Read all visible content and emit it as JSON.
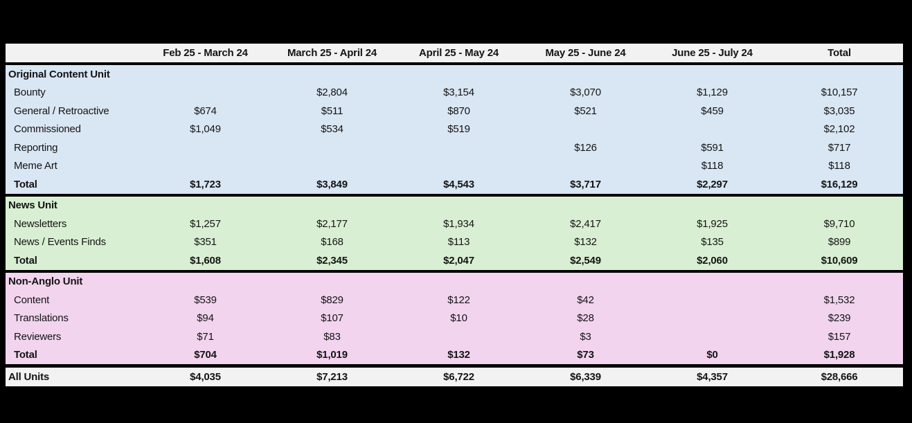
{
  "colors": {
    "background": "#000000",
    "header_row_bg": "#f2f2f2",
    "grand_total_bg": "#f2f2f2",
    "original_content_bg": "#d9e6f4",
    "news_bg": "#d9efd3",
    "non_anglo_bg": "#f2d4ef",
    "text": "#141414"
  },
  "chart_data": {
    "type": "table",
    "title": "",
    "columns": [
      "",
      "Feb 25 - March 24",
      "March 25 - April 24",
      "April 25 - May 24",
      "May 25 - June 24",
      "June 25 - July 24",
      "Total"
    ],
    "sections": [
      {
        "name": "Original Content Unit",
        "color": "#d9e6f4",
        "rows": [
          {
            "label": "Bounty",
            "values": [
              "",
              "$2,804",
              "$3,154",
              "$3,070",
              "$1,129",
              "$10,157"
            ]
          },
          {
            "label": "General / Retroactive",
            "values": [
              "$674",
              "$511",
              "$870",
              "$521",
              "$459",
              "$3,035"
            ]
          },
          {
            "label": "Commissioned",
            "values": [
              "$1,049",
              "$534",
              "$519",
              "",
              "",
              "$2,102"
            ]
          },
          {
            "label": "Reporting",
            "values": [
              "",
              "",
              "",
              "$126",
              "$591",
              "$717"
            ]
          },
          {
            "label": "Meme Art",
            "values": [
              "",
              "",
              "",
              "",
              "$118",
              "$118"
            ]
          }
        ],
        "total": {
          "label": "Total",
          "values": [
            "$1,723",
            "$3,849",
            "$4,543",
            "$3,717",
            "$2,297",
            "$16,129"
          ]
        }
      },
      {
        "name": "News Unit",
        "color": "#d9efd3",
        "rows": [
          {
            "label": "Newsletters",
            "values": [
              "$1,257",
              "$2,177",
              "$1,934",
              "$2,417",
              "$1,925",
              "$9,710"
            ]
          },
          {
            "label": "News / Events Finds",
            "values": [
              "$351",
              "$168",
              "$113",
              "$132",
              "$135",
              "$899"
            ]
          }
        ],
        "total": {
          "label": "Total",
          "values": [
            "$1,608",
            "$2,345",
            "$2,047",
            "$2,549",
            "$2,060",
            "$10,609"
          ]
        }
      },
      {
        "name": "Non-Anglo Unit",
        "color": "#f2d4ef",
        "rows": [
          {
            "label": "Content",
            "values": [
              "$539",
              "$829",
              "$122",
              "$42",
              "",
              "$1,532"
            ]
          },
          {
            "label": "Translations",
            "values": [
              "$94",
              "$107",
              "$10",
              "$28",
              "",
              "$239"
            ]
          },
          {
            "label": "Reviewers",
            "values": [
              "$71",
              "$83",
              "",
              "$3",
              "",
              "$157"
            ]
          }
        ],
        "total": {
          "label": "Total",
          "values": [
            "$704",
            "$1,019",
            "$132",
            "$73",
            "$0",
            "$1,928"
          ]
        }
      }
    ],
    "grand_total": {
      "label": "All Units",
      "values": [
        "$4,035",
        "$7,213",
        "$6,722",
        "$6,339",
        "$4,357",
        "$28,666"
      ]
    }
  }
}
